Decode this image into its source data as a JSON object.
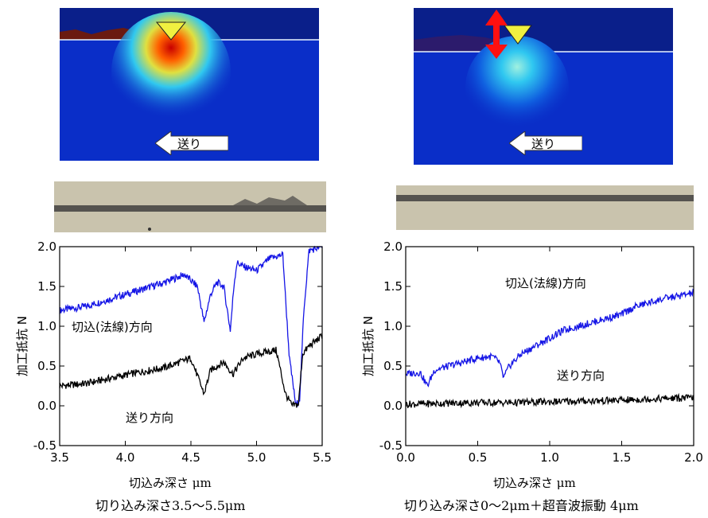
{
  "left": {
    "feed_label": "送り",
    "caption": "切り込み深さ3.5〜5.5μm"
  },
  "right": {
    "feed_label": "送り",
    "caption": "切り込み深さ0〜2μm＋超音波振動 4μm"
  },
  "chart_data": [
    {
      "type": "line",
      "xlabel": "切込み深さ μm",
      "ylabel": "加工抵抗 N",
      "xlim": [
        3.5,
        5.5
      ],
      "ylim": [
        -0.5,
        2.0
      ],
      "xticks": [
        "3.5",
        "4.0",
        "4.5",
        "5.0",
        "5.5"
      ],
      "yticks": [
        "-0.5",
        "0.0",
        "0.5",
        "1.0",
        "1.5",
        "2.0"
      ],
      "annotations": [
        "切込(法線)方向",
        "送り方向"
      ],
      "series": [
        {
          "name": "切込(法線)方向",
          "color": "#1515e6",
          "x": [
            3.5,
            3.7,
            3.9,
            4.1,
            4.3,
            4.45,
            4.55,
            4.6,
            4.65,
            4.7,
            4.75,
            4.8,
            4.83,
            4.85,
            4.9,
            5.0,
            5.1,
            5.2,
            5.25,
            5.3,
            5.33,
            5.36,
            5.4,
            5.5
          ],
          "y": [
            1.2,
            1.25,
            1.35,
            1.45,
            1.55,
            1.65,
            1.5,
            1.05,
            1.4,
            1.55,
            1.5,
            0.95,
            1.55,
            1.8,
            1.75,
            1.7,
            1.85,
            1.9,
            0.6,
            0.0,
            0.1,
            1.2,
            1.95,
            2.0
          ]
        },
        {
          "name": "送り方向",
          "color": "#000000",
          "x": [
            3.5,
            3.7,
            3.9,
            4.1,
            4.3,
            4.5,
            4.6,
            4.65,
            4.75,
            4.82,
            4.9,
            5.0,
            5.15,
            5.22,
            5.27,
            5.32,
            5.35,
            5.4,
            5.5
          ],
          "y": [
            0.25,
            0.28,
            0.35,
            0.42,
            0.48,
            0.6,
            0.15,
            0.45,
            0.55,
            0.4,
            0.6,
            0.65,
            0.7,
            0.15,
            0.0,
            0.02,
            0.65,
            0.75,
            0.88
          ]
        }
      ]
    },
    {
      "type": "line",
      "xlabel": "切込み深さ μm",
      "ylabel": "加工抵抗 N",
      "xlim": [
        0.0,
        2.0
      ],
      "ylim": [
        -0.5,
        2.0
      ],
      "xticks": [
        "0.0",
        "0.5",
        "1.0",
        "1.5",
        "2.0"
      ],
      "yticks": [
        "-0.5",
        "0.0",
        "0.5",
        "1.0",
        "1.5",
        "2.0"
      ],
      "annotations": [
        "切込(法線)方向",
        "送り方向"
      ],
      "series": [
        {
          "name": "切込(法線)方向",
          "color": "#1515e6",
          "x": [
            0.0,
            0.1,
            0.15,
            0.2,
            0.3,
            0.4,
            0.5,
            0.6,
            0.65,
            0.68,
            0.72,
            0.8,
            0.9,
            1.0,
            1.1,
            1.2,
            1.3,
            1.4,
            1.5,
            1.6,
            1.7,
            1.8,
            1.9,
            2.0
          ],
          "y": [
            0.4,
            0.42,
            0.25,
            0.45,
            0.5,
            0.55,
            0.6,
            0.62,
            0.55,
            0.35,
            0.5,
            0.65,
            0.75,
            0.85,
            0.95,
            1.0,
            1.05,
            1.1,
            1.15,
            1.25,
            1.3,
            1.35,
            1.38,
            1.42
          ]
        },
        {
          "name": "送り方向",
          "color": "#000000",
          "x": [
            0.0,
            0.25,
            0.5,
            0.75,
            1.0,
            1.25,
            1.5,
            1.75,
            2.0
          ],
          "y": [
            0.02,
            0.03,
            0.04,
            0.04,
            0.05,
            0.06,
            0.07,
            0.09,
            0.1
          ]
        }
      ]
    }
  ]
}
